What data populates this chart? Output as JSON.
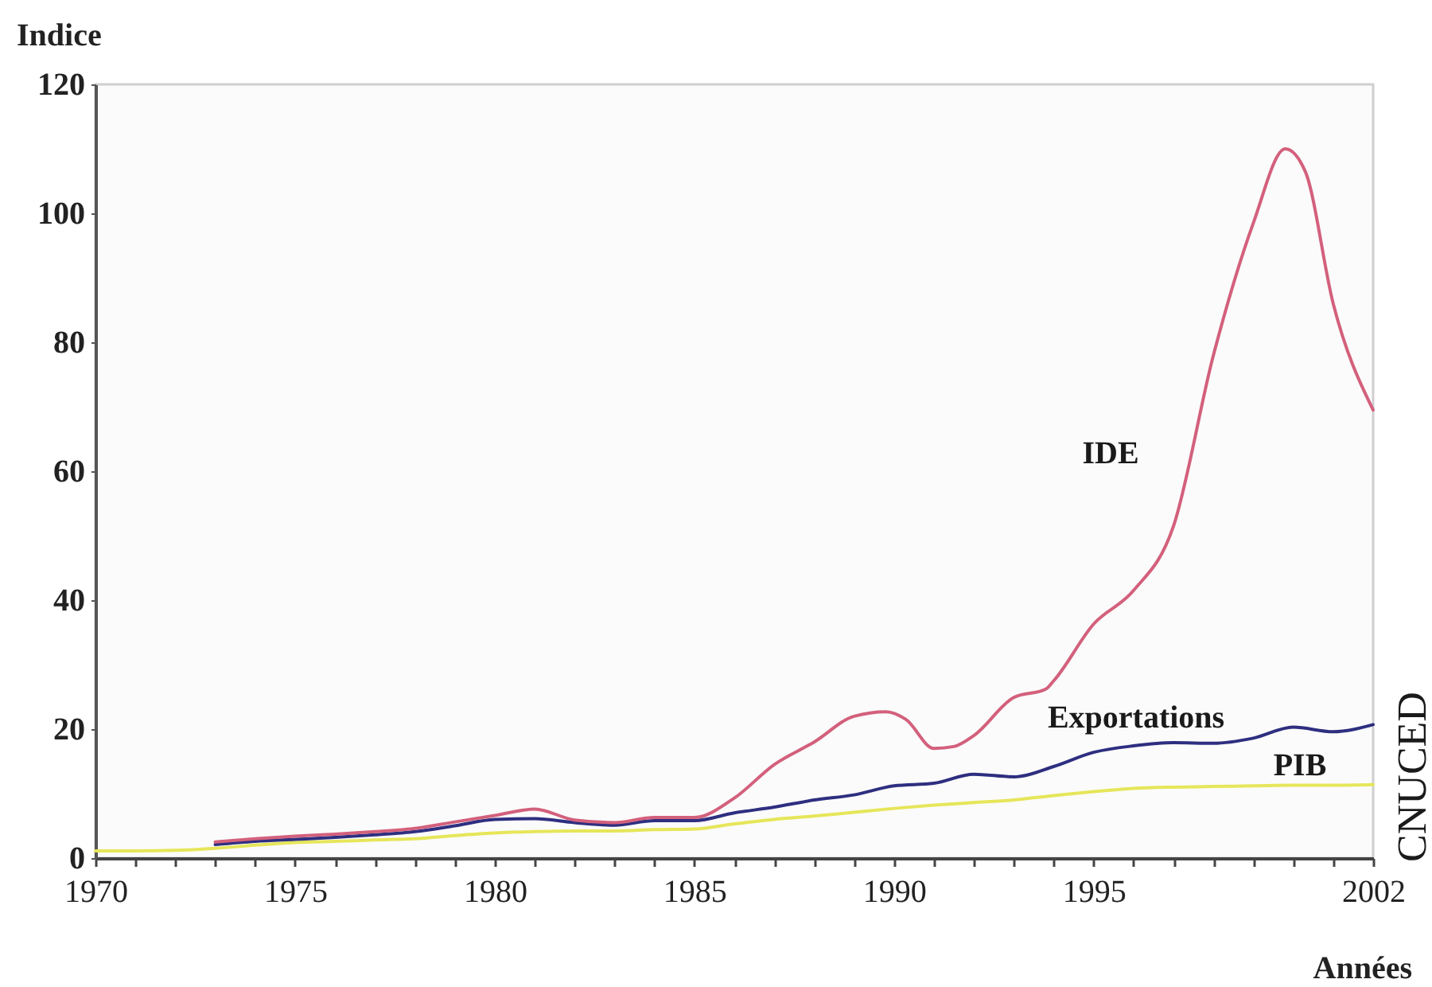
{
  "chart_data": {
    "type": "line",
    "xlabel": "Années",
    "ylabel": "Indice",
    "annotations": [
      "CNUCED"
    ],
    "x": [
      1970,
      1971,
      1972,
      1973,
      1974,
      1975,
      1976,
      1977,
      1978,
      1979,
      1980,
      1981,
      1982,
      1983,
      1984,
      1985,
      1986,
      1987,
      1988,
      1989,
      1990,
      1991,
      1992,
      1993,
      1994,
      1995,
      1996,
      1997,
      1998,
      1999,
      2000,
      2001,
      2002
    ],
    "series": [
      {
        "name": "IDE",
        "color": "#d3607c",
        "x": [
          1973,
          1974,
          1975,
          1976,
          1977,
          1978,
          1979,
          1980,
          1981,
          1982,
          1983,
          1984,
          1985,
          1986,
          1987,
          1988,
          1989,
          1989.8,
          1990.3,
          1991,
          1991.5,
          1992,
          1993,
          1993.8,
          1994,
          1995,
          1996,
          1997,
          1998,
          1999,
          1999.8,
          2000.3,
          2001,
          2002
        ],
        "values": [
          2.5,
          3.0,
          3.4,
          3.7,
          4.1,
          4.6,
          5.6,
          6.6,
          7.6,
          5.9,
          5.5,
          6.3,
          6.3,
          9.3,
          14.5,
          18.0,
          22.0,
          22.7,
          21.5,
          17.0,
          17.3,
          19.0,
          24.9,
          26.2,
          27.5,
          36.3,
          41.5,
          51.5,
          78,
          98.5,
          110,
          106.5,
          86,
          69.5
        ]
      },
      {
        "name": "Exportations",
        "color": "#2e2f80",
        "x": [
          1973,
          1974,
          1975,
          1976,
          1977,
          1978,
          1979,
          1980,
          1981,
          1982,
          1983,
          1984,
          1985,
          1986,
          1987,
          1988,
          1989,
          1990,
          1991,
          1992,
          1993,
          1994,
          1995,
          1996,
          1997,
          1998,
          1999,
          2000,
          2001,
          2002
        ],
        "values": [
          2.1,
          2.6,
          2.9,
          3.2,
          3.6,
          4.1,
          5.0,
          6.0,
          6.1,
          5.5,
          5.1,
          5.8,
          5.8,
          7.0,
          7.9,
          9.0,
          9.8,
          11.2,
          11.6,
          13.0,
          12.6,
          14.2,
          16.4,
          17.4,
          17.9,
          17.8,
          18.6,
          20.3,
          19.6,
          20.7
        ]
      },
      {
        "name": "PIB",
        "color": "#e6e65a",
        "values": [
          1.1,
          1.1,
          1.2,
          1.5,
          2.0,
          2.4,
          2.6,
          2.8,
          3.0,
          3.5,
          3.9,
          4.1,
          4.2,
          4.2,
          4.4,
          4.5,
          5.3,
          6.0,
          6.5,
          7.1,
          7.7,
          8.2,
          8.6,
          9.0,
          9.7,
          10.3,
          10.8,
          11.0,
          11.1,
          11.2,
          11.3,
          11.3,
          11.4
        ]
      }
    ],
    "xlim": [
      1970,
      2002
    ],
    "xticks": [
      1970,
      {
        "value": 1971,
        "label": null
      },
      {
        "value": 1972,
        "label": null
      },
      {
        "value": 1973,
        "label": null
      },
      {
        "value": 1974,
        "label": null
      },
      1975,
      {
        "value": 1976,
        "label": null
      },
      {
        "value": 1977,
        "label": null
      },
      {
        "value": 1978,
        "label": null
      },
      {
        "value": 1979,
        "label": null
      },
      1980,
      {
        "value": 1981,
        "label": null
      },
      {
        "value": 1982,
        "label": null
      },
      {
        "value": 1983,
        "label": null
      },
      {
        "value": 1984,
        "label": null
      },
      1985,
      {
        "value": 1986,
        "label": null
      },
      {
        "value": 1987,
        "label": null
      },
      {
        "value": 1988,
        "label": null
      },
      {
        "value": 1989,
        "label": null
      },
      1990,
      {
        "value": 1991,
        "label": null
      },
      {
        "value": 1992,
        "label": null
      },
      {
        "value": 1993,
        "label": null
      },
      {
        "value": 1994,
        "label": null
      },
      1995,
      {
        "value": 1996,
        "label": null
      },
      {
        "value": 1997,
        "label": null
      },
      {
        "value": 1998,
        "label": null
      },
      {
        "value": 1999,
        "label": null
      },
      {
        "value": 2000,
        "label": null
      },
      {
        "value": 2001,
        "label": null
      },
      2002
    ],
    "ylim": [
      0,
      120
    ],
    "yticks": [
      0,
      20,
      40,
      60,
      80,
      100,
      120
    ]
  }
}
